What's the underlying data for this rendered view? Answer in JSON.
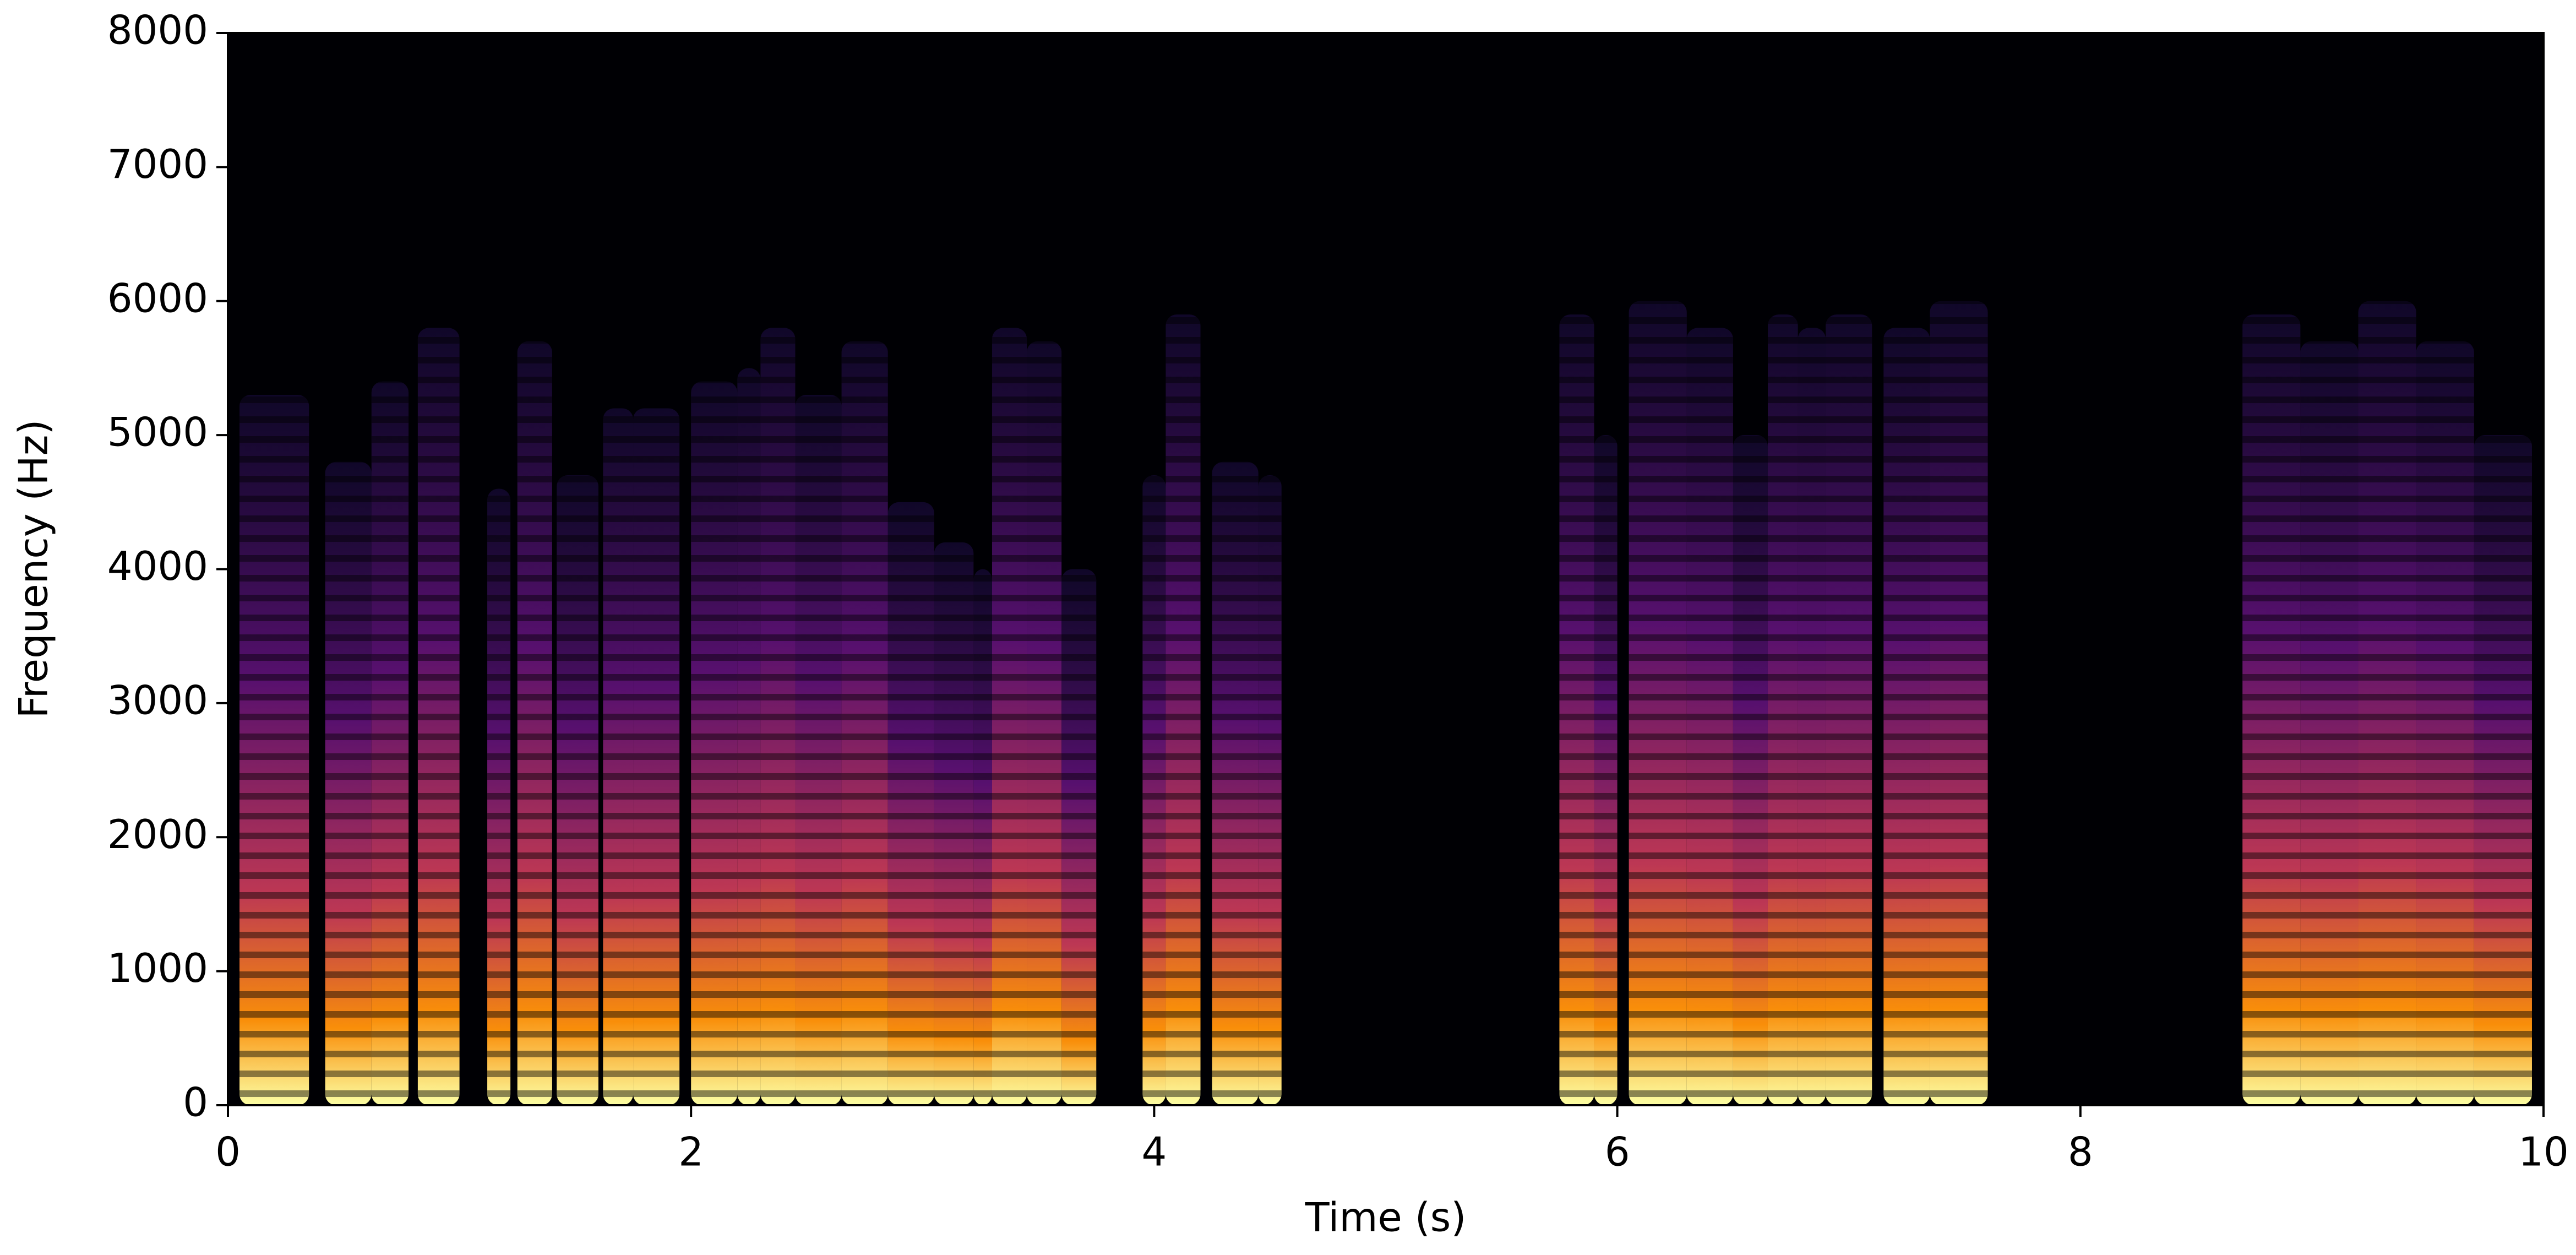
{
  "chart_data": {
    "type": "spectrogram",
    "colormap": "inferno",
    "xlabel": "Time (s)",
    "ylabel": "Frequency (Hz)",
    "xlim": [
      0,
      10
    ],
    "xticks": [
      0,
      2,
      4,
      6,
      8,
      10
    ],
    "ylim": [
      0,
      8000
    ],
    "yticks": [
      0,
      1000,
      2000,
      3000,
      4000,
      5000,
      6000,
      7000,
      8000
    ],
    "segments": [
      {
        "start": 0.05,
        "end": 0.35,
        "fmax": 5300
      },
      {
        "start": 0.42,
        "end": 0.62,
        "fmax": 4800
      },
      {
        "start": 0.62,
        "end": 0.78,
        "fmax": 5400
      },
      {
        "start": 0.82,
        "end": 1.0,
        "fmax": 5800
      },
      {
        "start": 1.12,
        "end": 1.22,
        "fmax": 4600
      },
      {
        "start": 1.25,
        "end": 1.4,
        "fmax": 5700
      },
      {
        "start": 1.42,
        "end": 1.6,
        "fmax": 4700
      },
      {
        "start": 1.62,
        "end": 1.75,
        "fmax": 5200
      },
      {
        "start": 1.75,
        "end": 1.95,
        "fmax": 5200
      },
      {
        "start": 2.0,
        "end": 2.2,
        "fmax": 5400
      },
      {
        "start": 2.2,
        "end": 2.3,
        "fmax": 5500
      },
      {
        "start": 2.3,
        "end": 2.45,
        "fmax": 5800
      },
      {
        "start": 2.45,
        "end": 2.65,
        "fmax": 5300
      },
      {
        "start": 2.65,
        "end": 2.85,
        "fmax": 5700
      },
      {
        "start": 2.85,
        "end": 3.05,
        "fmax": 4500
      },
      {
        "start": 3.05,
        "end": 3.22,
        "fmax": 4200
      },
      {
        "start": 3.22,
        "end": 3.3,
        "fmax": 4000
      },
      {
        "start": 3.3,
        "end": 3.45,
        "fmax": 5800
      },
      {
        "start": 3.45,
        "end": 3.6,
        "fmax": 5700
      },
      {
        "start": 3.6,
        "end": 3.75,
        "fmax": 4000
      },
      {
        "start": 3.95,
        "end": 4.05,
        "fmax": 4700
      },
      {
        "start": 4.05,
        "end": 4.2,
        "fmax": 5900
      },
      {
        "start": 4.25,
        "end": 4.45,
        "fmax": 4800
      },
      {
        "start": 4.45,
        "end": 4.55,
        "fmax": 4700
      },
      {
        "start": 5.75,
        "end": 5.9,
        "fmax": 5900
      },
      {
        "start": 5.9,
        "end": 6.0,
        "fmax": 5000
      },
      {
        "start": 6.05,
        "end": 6.3,
        "fmax": 6000
      },
      {
        "start": 6.3,
        "end": 6.5,
        "fmax": 5800
      },
      {
        "start": 6.5,
        "end": 6.65,
        "fmax": 5000
      },
      {
        "start": 6.65,
        "end": 6.78,
        "fmax": 5900
      },
      {
        "start": 6.78,
        "end": 6.9,
        "fmax": 5800
      },
      {
        "start": 6.9,
        "end": 7.1,
        "fmax": 5900
      },
      {
        "start": 7.15,
        "end": 7.35,
        "fmax": 5800
      },
      {
        "start": 7.35,
        "end": 7.6,
        "fmax": 6000
      },
      {
        "start": 8.7,
        "end": 8.95,
        "fmax": 5900
      },
      {
        "start": 8.95,
        "end": 9.2,
        "fmax": 5700
      },
      {
        "start": 9.2,
        "end": 9.45,
        "fmax": 6000
      },
      {
        "start": 9.45,
        "end": 9.7,
        "fmax": 5700
      },
      {
        "start": 9.7,
        "end": 9.95,
        "fmax": 5000
      }
    ]
  }
}
